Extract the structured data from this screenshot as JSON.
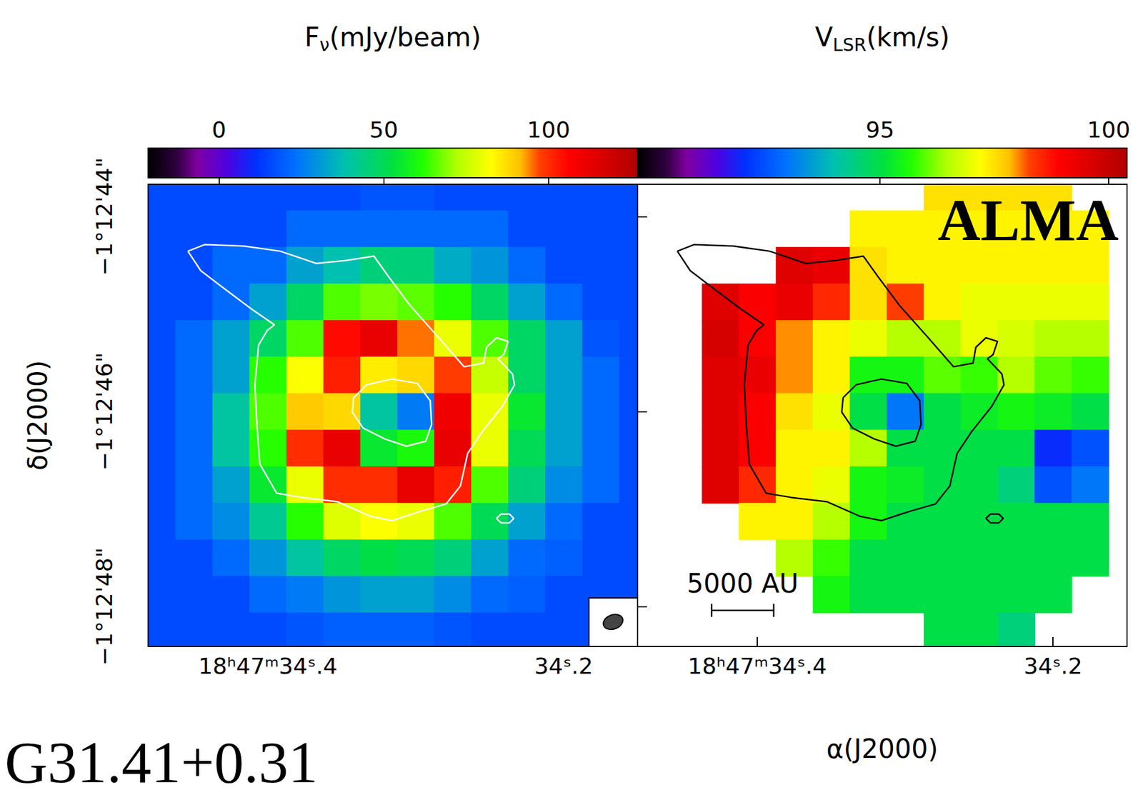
{
  "figure_label": "G31.41+0.31",
  "chart_data": [
    {
      "type": "heatmap",
      "colorbar": {
        "title": {
          "base": "F",
          "sub": "ν",
          "tail": "(mJy/beam)"
        },
        "range": [
          -21.5,
          127
        ],
        "ticks": [
          0,
          50,
          100
        ]
      },
      "xlim": [
        34.481,
        34.15
      ],
      "xticks": [
        {
          "value": 34.4,
          "label": "18ʰ47ᵐ34ˢ.4"
        },
        {
          "value": 34.2,
          "label": "34ˢ.2"
        }
      ],
      "ylim": [
        -48.41,
        -43.67
      ],
      "yticks": [
        {
          "value": -48,
          "label": "−1°12'48\""
        },
        {
          "value": -46,
          "label": "−1°12'46\""
        },
        {
          "value": -44,
          "label": "−1°12'44\""
        }
      ],
      "ylabel": "δ(J2000)",
      "x": [
        34.475,
        34.45,
        34.425,
        34.4,
        34.375,
        34.35,
        34.325,
        34.3,
        34.275,
        34.25,
        34.225,
        34.2,
        34.175,
        34.15
      ],
      "y": [
        -43.75,
        -44.125,
        -44.5,
        -44.875,
        -45.25,
        -45.625,
        -46,
        -46.375,
        -46.75,
        -47.125,
        -47.5,
        -47.875,
        -48.25
      ],
      "values": [
        [
          16,
          16,
          16,
          16,
          16,
          16,
          18,
          18,
          16,
          16,
          16,
          16,
          16,
          16
        ],
        [
          16,
          16,
          16,
          16,
          22,
          22,
          22,
          22,
          22,
          22,
          16,
          16,
          16,
          16
        ],
        [
          16,
          16,
          22,
          22,
          32,
          38,
          45,
          45,
          34,
          30,
          22,
          16,
          16,
          16
        ],
        [
          16,
          16,
          22,
          32,
          48,
          65,
          68,
          66,
          62,
          48,
          32,
          22,
          16,
          16
        ],
        [
          16,
          22,
          32,
          48,
          65,
          105,
          112,
          95,
          80,
          65,
          48,
          32,
          18,
          16
        ],
        [
          16,
          22,
          32,
          62,
          82,
          102,
          85,
          88,
          98,
          75,
          48,
          32,
          22,
          16
        ],
        [
          16,
          22,
          40,
          65,
          90,
          88,
          40,
          25,
          110,
          80,
          55,
          32,
          22,
          16
        ],
        [
          16,
          22,
          40,
          62,
          100,
          112,
          55,
          60,
          112,
          80,
          50,
          32,
          22,
          16
        ],
        [
          16,
          22,
          32,
          55,
          80,
          100,
          100,
          112,
          102,
          65,
          45,
          28,
          22,
          16
        ],
        [
          16,
          22,
          28,
          42,
          62,
          78,
          82,
          80,
          65,
          50,
          32,
          22,
          16,
          16
        ],
        [
          16,
          16,
          22,
          30,
          40,
          48,
          52,
          50,
          45,
          32,
          22,
          20,
          16,
          16
        ],
        [
          16,
          16,
          16,
          22,
          25,
          30,
          32,
          32,
          28,
          22,
          20,
          16,
          16,
          16
        ],
        [
          16,
          16,
          16,
          16,
          18,
          20,
          20,
          20,
          18,
          16,
          16,
          16,
          16,
          16
        ]
      ],
      "contours": [
        {
          "color": "#ffffff",
          "x": [
            34.4541,
            34.4429,
            34.4161,
            34.3917,
            34.3673,
            34.3478,
            34.3283,
            34.3185,
            34.3039,
            34.2844,
            34.2673,
            34.2541,
            34.2522,
            34.2454,
            34.2376,
            34.2405,
            34.2444,
            34.2346,
            34.2332,
            34.2415,
            34.2551,
            34.2649,
            34.2698,
            34.2795,
            34.2966,
            34.3161,
            34.3307,
            34.3527,
            34.3771,
            34.3941,
            34.4054,
            34.4073,
            34.4088,
            34.4063,
            34.4005,
            34.3956,
            34.4112,
            34.4307,
            34.4454,
            34.4541
          ],
          "y": [
            -44.356,
            -44.289,
            -44.304,
            -44.356,
            -44.481,
            -44.452,
            -44.407,
            -44.615,
            -44.911,
            -45.244,
            -45.541,
            -45.504,
            -45.341,
            -45.244,
            -45.281,
            -45.415,
            -45.459,
            -45.615,
            -45.726,
            -45.948,
            -46.207,
            -46.43,
            -46.763,
            -46.948,
            -47.022,
            -47.119,
            -47.074,
            -46.926,
            -46.881,
            -46.837,
            -46.541,
            -46.17,
            -45.726,
            -45.319,
            -45.17,
            -45.111,
            -44.948,
            -44.726,
            -44.556,
            -44.356
          ]
        },
        {
          "color": "#ffffff",
          "x": [
            34.342,
            34.3332,
            34.3161,
            34.299,
            34.2902,
            34.2893,
            34.2932,
            34.3063,
            34.321,
            34.3356,
            34.3429,
            34.342
          ],
          "y": [
            -45.859,
            -45.726,
            -45.667,
            -45.711,
            -45.889,
            -46.133,
            -46.304,
            -46.356,
            -46.281,
            -46.17,
            -46.007,
            -45.859
          ]
        },
        {
          "color": "#ffffff",
          "x": [
            34.2454,
            34.2424,
            34.2366,
            34.2337,
            34.2366,
            34.2424,
            34.2454
          ],
          "y": [
            -47.096,
            -47.052,
            -47.052,
            -47.096,
            -47.141,
            -47.141,
            -47.096
          ]
        }
      ]
    },
    {
      "type": "heatmap",
      "colorbar": {
        "title": {
          "base": "V",
          "sub": "LSR",
          "tail": "(km/s)"
        },
        "range": [
          89.7,
          100.4
        ],
        "ticks": [
          95,
          100
        ]
      },
      "xlim": [
        34.481,
        34.15
      ],
      "xticks": [
        {
          "value": 34.4,
          "label": "18ʰ47ᵐ34ˢ.4"
        },
        {
          "value": 34.2,
          "label": "34ˢ.2"
        }
      ],
      "ylim": [
        -48.41,
        -43.67
      ],
      "yticks": [
        -48,
        -46,
        -44
      ],
      "tick_labels": "x",
      "xlabel": "α(J2000)",
      "annotations": [
        "ALMA"
      ],
      "scale_bar": {
        "label": "5000 AU",
        "length": 0.042
      },
      "x": [
        34.475,
        34.45,
        34.425,
        34.4,
        34.375,
        34.35,
        34.325,
        34.3,
        34.275,
        34.25,
        34.225,
        34.2,
        34.175,
        34.15
      ],
      "y": [
        -43.75,
        -44.125,
        -44.5,
        -44.875,
        -45.25,
        -45.625,
        -46,
        -46.375,
        -46.75,
        -47.125,
        -47.5,
        -47.875,
        -48.25
      ],
      "values": [
        [
          null,
          null,
          null,
          null,
          null,
          null,
          null,
          null,
          97.5,
          97.5,
          97.5,
          97.5,
          null,
          null
        ],
        [
          null,
          null,
          null,
          null,
          null,
          null,
          97.3,
          97.3,
          97.3,
          97.3,
          97.3,
          97.3,
          97.3,
          null
        ],
        [
          null,
          null,
          null,
          null,
          99.5,
          99.3,
          97.5,
          97.3,
          97.3,
          97.3,
          97.3,
          97.3,
          97.3,
          null
        ],
        [
          null,
          null,
          99.5,
          99.0,
          99.3,
          98.5,
          97.5,
          98.3,
          97.3,
          97.0,
          97.0,
          97.0,
          97.0,
          null
        ],
        [
          null,
          null,
          99.7,
          99.0,
          98.0,
          97.3,
          97.0,
          96.5,
          96.5,
          97.0,
          96.8,
          96.5,
          96.5,
          null
        ],
        [
          null,
          null,
          99.5,
          99.3,
          98.0,
          97.3,
          95.5,
          95.5,
          96.0,
          95.8,
          96.5,
          96.0,
          95.8,
          null
        ],
        [
          null,
          null,
          99.5,
          99.0,
          97.5,
          97.0,
          95.0,
          93.0,
          95.0,
          95.3,
          95.5,
          95.3,
          95.0,
          null
        ],
        [
          null,
          null,
          99.5,
          99.0,
          97.3,
          97.3,
          96.5,
          95.0,
          95.0,
          95.0,
          95.0,
          92.0,
          92.5,
          null
        ],
        [
          null,
          null,
          99.5,
          98.5,
          97.3,
          97.0,
          95.5,
          95.3,
          95.0,
          95.0,
          94.5,
          92.5,
          93.0,
          null
        ],
        [
          null,
          null,
          null,
          97.3,
          97.3,
          96.5,
          95.5,
          95.0,
          95.0,
          95.0,
          95.0,
          95.0,
          95.0,
          null
        ],
        [
          null,
          null,
          null,
          null,
          96.5,
          95.8,
          95.0,
          95.0,
          95.0,
          95.0,
          95.0,
          95.0,
          95.0,
          null
        ],
        [
          null,
          null,
          null,
          null,
          null,
          95.5,
          95.0,
          95.0,
          95.0,
          95.0,
          95.0,
          95.0,
          null,
          null
        ],
        [
          null,
          null,
          null,
          null,
          null,
          null,
          null,
          null,
          95.0,
          95.0,
          94.5,
          null,
          null,
          null
        ]
      ],
      "contours": [
        {
          "color": "#000000",
          "x": [
            34.4541,
            34.4429,
            34.4161,
            34.3917,
            34.3673,
            34.3478,
            34.3283,
            34.3185,
            34.3039,
            34.2844,
            34.2673,
            34.2541,
            34.2522,
            34.2454,
            34.2376,
            34.2405,
            34.2444,
            34.2346,
            34.2332,
            34.2415,
            34.2551,
            34.2649,
            34.2698,
            34.2795,
            34.2966,
            34.3161,
            34.3307,
            34.3527,
            34.3771,
            34.3941,
            34.4054,
            34.4073,
            34.4088,
            34.4063,
            34.4005,
            34.3956,
            34.4112,
            34.4307,
            34.4454,
            34.4541
          ],
          "y": [
            -44.356,
            -44.289,
            -44.304,
            -44.356,
            -44.481,
            -44.452,
            -44.407,
            -44.615,
            -44.911,
            -45.244,
            -45.541,
            -45.504,
            -45.341,
            -45.244,
            -45.281,
            -45.415,
            -45.459,
            -45.615,
            -45.726,
            -45.948,
            -46.207,
            -46.43,
            -46.763,
            -46.948,
            -47.022,
            -47.119,
            -47.074,
            -46.926,
            -46.881,
            -46.837,
            -46.541,
            -46.17,
            -45.726,
            -45.319,
            -45.17,
            -45.111,
            -44.948,
            -44.726,
            -44.556,
            -44.356
          ]
        },
        {
          "color": "#000000",
          "x": [
            34.342,
            34.3332,
            34.3161,
            34.299,
            34.2902,
            34.2893,
            34.2932,
            34.3063,
            34.321,
            34.3356,
            34.3429,
            34.342
          ],
          "y": [
            -45.859,
            -45.726,
            -45.667,
            -45.711,
            -45.889,
            -46.133,
            -46.304,
            -46.356,
            -46.281,
            -46.17,
            -46.007,
            -45.859
          ]
        },
        {
          "color": "#000000",
          "x": [
            34.2454,
            34.2424,
            34.2366,
            34.2337,
            34.2366,
            34.2424,
            34.2454
          ],
          "y": [
            -47.096,
            -47.052,
            -47.052,
            -47.096,
            -47.141,
            -47.141,
            -47.096
          ]
        }
      ]
    }
  ]
}
